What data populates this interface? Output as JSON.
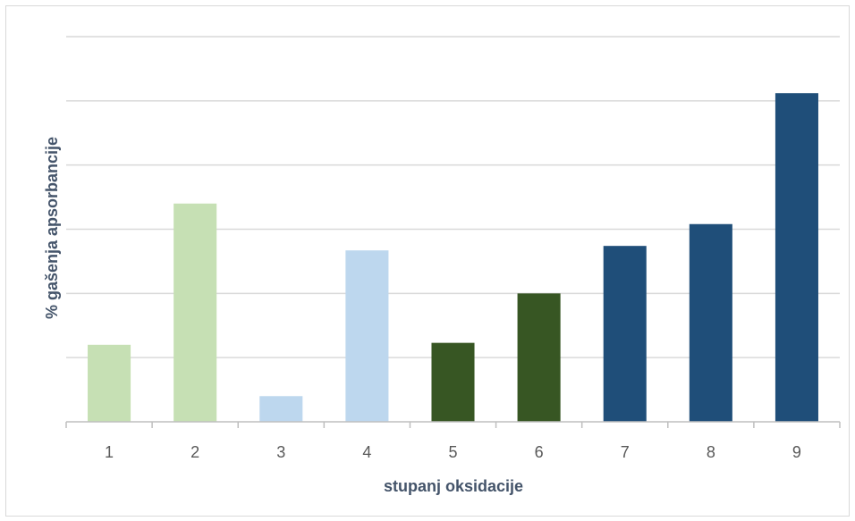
{
  "chart_data": {
    "type": "bar",
    "categories": [
      "1",
      "2",
      "3",
      "4",
      "5",
      "6",
      "7",
      "8",
      "9"
    ],
    "values": [
      1.2,
      3.4,
      0.4,
      2.67,
      1.23,
      2.0,
      2.74,
      3.08,
      5.12
    ],
    "bar_colors": [
      "#c6e0b4",
      "#c6e0b4",
      "#bdd7ee",
      "#bdd7ee",
      "#375623",
      "#375623",
      "#1f4e79",
      "#1f4e79",
      "#1f4e79"
    ],
    "xlabel": "stupanj oksidacije",
    "ylabel": "% gašenja apsorbancije",
    "ylim": [
      0,
      6
    ],
    "grid": true,
    "y_tick_labels_shown": false,
    "legend": "none"
  }
}
